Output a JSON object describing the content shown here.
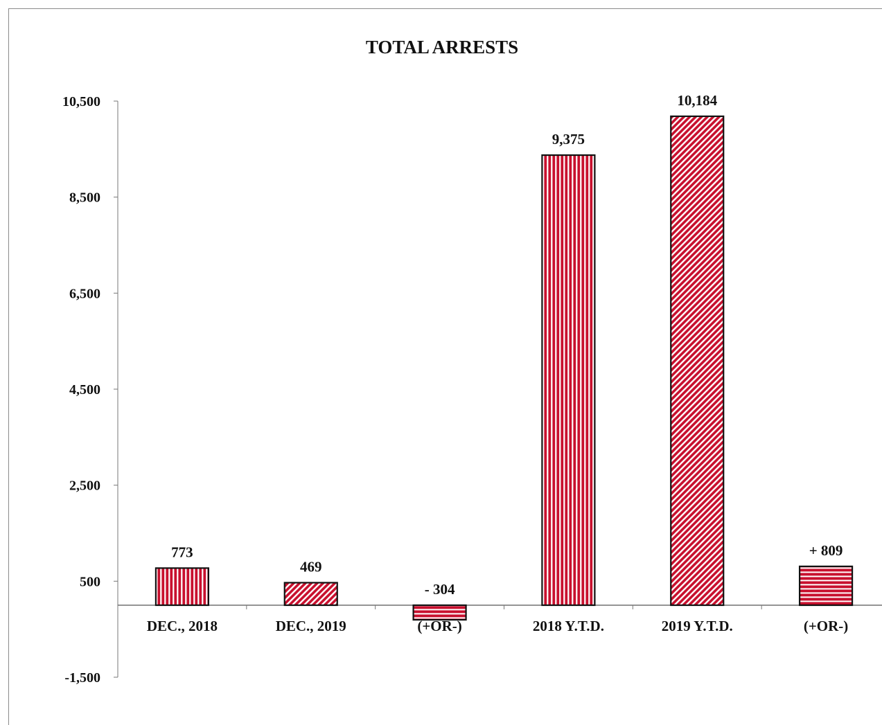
{
  "chart_data": {
    "type": "bar",
    "title": "TOTAL ARRESTS",
    "xlabel": "",
    "ylabel": "",
    "ylim": [
      -1500,
      10500
    ],
    "yticks": [
      10500,
      8500,
      6500,
      4500,
      2500,
      500,
      -1500
    ],
    "ytick_labels": [
      "10,500",
      "8,500",
      "6,500",
      "4,500",
      "2,500",
      "500",
      "-1,500"
    ],
    "categories": [
      "DEC., 2018",
      "DEC., 2019",
      "(+OR-)",
      "2018 Y.T.D.",
      "2019 Y.T.D.",
      "(+OR-)"
    ],
    "values": [
      773,
      469,
      -304,
      9375,
      10184,
      809
    ],
    "data_labels": [
      "773",
      "469",
      "- 304",
      "9,375",
      "10,184",
      "+ 809"
    ],
    "patterns": [
      "vertical",
      "diagonal",
      "horizontal",
      "vertical",
      "diagonal",
      "horizontal"
    ],
    "grid": false,
    "legend": "none",
    "colors": {
      "bar_fill": "#c8102e",
      "stripe": "#ffffff",
      "outline": "#111111"
    }
  }
}
